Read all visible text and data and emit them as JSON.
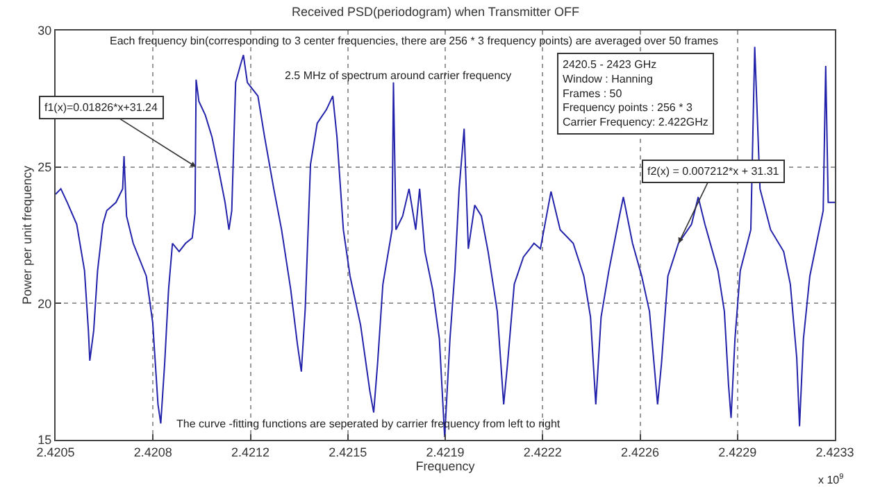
{
  "chart_data": {
    "type": "line",
    "title": "Received PSD(periodogram) when Transmitter OFF",
    "xlabel": "Frequency",
    "ylabel": "Power per unit frequency",
    "x": [
      2.4205,
      2.420519,
      2.420542,
      2.420576,
      2.420604,
      2.420618,
      2.420623,
      2.420637,
      2.420651,
      2.42067,
      2.420684,
      2.420717,
      2.420741,
      2.420746,
      2.420755,
      2.420779,
      2.420826,
      2.420849,
      2.420868,
      2.420878,
      2.420892,
      2.420906,
      2.42092,
      2.420944,
      2.420967,
      2.420991,
      2.421001,
      2.421005,
      2.421015,
      2.421038,
      2.421062,
      2.421086,
      2.421109,
      2.421123,
      2.421133,
      2.421147,
      2.421166,
      2.421175,
      2.421189,
      2.421204,
      2.421227,
      2.421251,
      2.421284,
      2.421312,
      2.421345,
      2.421369,
      2.421383,
      2.421397,
      2.421416,
      2.42144,
      2.421473,
      2.421496,
      2.421511,
      2.421534,
      2.421558,
      2.421596,
      2.421629,
      2.421643,
      2.421657,
      2.421676,
      2.421709,
      2.421714,
      2.421723,
      2.421747,
      2.42177,
      2.421794,
      2.421808,
      2.421827,
      2.421855,
      2.421879,
      2.421898,
      2.421917,
      2.421935,
      2.42195,
      2.421968,
      2.421983,
      2.422006,
      2.42203,
      2.422054,
      2.422087,
      2.42211,
      2.422124,
      2.422148,
      2.422181,
      2.422219,
      2.422242,
      2.42228,
      2.422313,
      2.42236,
      2.422398,
      2.422422,
      2.422441,
      2.42246,
      2.422488,
      2.422526,
      2.42254,
      2.422573,
      2.422606,
      2.422634,
      2.422663,
      2.422677,
      2.4227,
      2.422738,
      2.422785,
      2.422809,
      2.422833,
      2.42288,
      2.422903,
      2.422918,
      2.422927,
      2.422941,
      2.42296,
      2.422998,
      2.423012,
      2.423031,
      2.423069,
      2.423116,
      2.42314,
      2.423163,
      2.423173,
      2.423187,
      2.42321,
      2.423234,
      2.423258,
      2.423267,
      2.423276,
      2.4233
    ],
    "series": [
      {
        "color": "#2222aa",
        "values": [
          24.0,
          24.2,
          23.7,
          22.9,
          21.2,
          19.0,
          17.9,
          19.0,
          21.2,
          22.9,
          23.4,
          23.7,
          24.2,
          25.4,
          23.2,
          22.2,
          21.0,
          19.3,
          16.3,
          15.6,
          17.8,
          20.5,
          22.2,
          21.9,
          22.2,
          22.4,
          23.3,
          28.2,
          27.4,
          26.9,
          26.1,
          24.9,
          23.7,
          22.7,
          23.4,
          28.1,
          28.8,
          29.1,
          28.1,
          27.9,
          27.6,
          26.1,
          24.2,
          22.7,
          20.5,
          18.5,
          17.5,
          19.8,
          25.1,
          26.6,
          27.1,
          27.6,
          26.1,
          22.7,
          21.0,
          19.2,
          16.8,
          16.0,
          17.8,
          20.7,
          22.7,
          28.1,
          22.7,
          23.2,
          24.2,
          22.7,
          24.2,
          21.9,
          20.5,
          18.7,
          15.1,
          18.7,
          21.2,
          24.2,
          26.4,
          22.0,
          23.6,
          23.2,
          21.9,
          19.7,
          16.3,
          17.8,
          20.7,
          21.7,
          22.2,
          22.0,
          24.1,
          22.7,
          22.2,
          21.0,
          19.5,
          16.3,
          19.5,
          21.2,
          23.2,
          23.9,
          22.2,
          21.0,
          19.7,
          16.3,
          17.8,
          21.0,
          22.2,
          22.9,
          23.9,
          22.9,
          21.2,
          19.7,
          17.0,
          15.8,
          18.7,
          21.2,
          22.7,
          29.4,
          24.2,
          22.7,
          21.9,
          20.7,
          18.0,
          15.5,
          18.7,
          21.0,
          22.2,
          23.4,
          28.7,
          23.7,
          23.7
        ]
      }
    ],
    "xlim": [
      2.4205,
      2.4233
    ],
    "xticks": [
      2.4205,
      {
        "value": 2.42085,
        "label": "2.4208"
      },
      2.4212,
      {
        "value": 2.42155,
        "label": "2.4215"
      },
      2.4219,
      {
        "value": 2.42225,
        "label": "2.4222"
      },
      2.4226,
      {
        "value": 2.42295,
        "label": "2.4229"
      },
      2.4233
    ],
    "ylim": [
      15,
      30
    ],
    "yticks": [
      15,
      20,
      25,
      30
    ],
    "grid": true,
    "marker": "none",
    "line_style": "solid",
    "annotations": [
      "Each frequency bin(corresponding to 3 center frequencies, there are 256 * 3 frequency points) are averaged over 50 frames",
      "2.5 MHz of spectrum around carrier frequency",
      "2420.5 - 2423 GHz\nWindow : Hanning\nFrames : 50\nFrequency points : 256 * 3\nCarrier Frequency: 2.422GHz",
      "The curve -fitting functions are seperated by carrier frequency from left to right",
      "x 10$^{9}$",
      {
        "text": "f1(x)=0.01826*x+31.24",
        "x": 2.421005,
        "y": 25
      },
      {
        "text": "f2(x) = 0.007212*x + 31.31",
        "x": 2.422738,
        "y": 22.2
      }
    ]
  }
}
